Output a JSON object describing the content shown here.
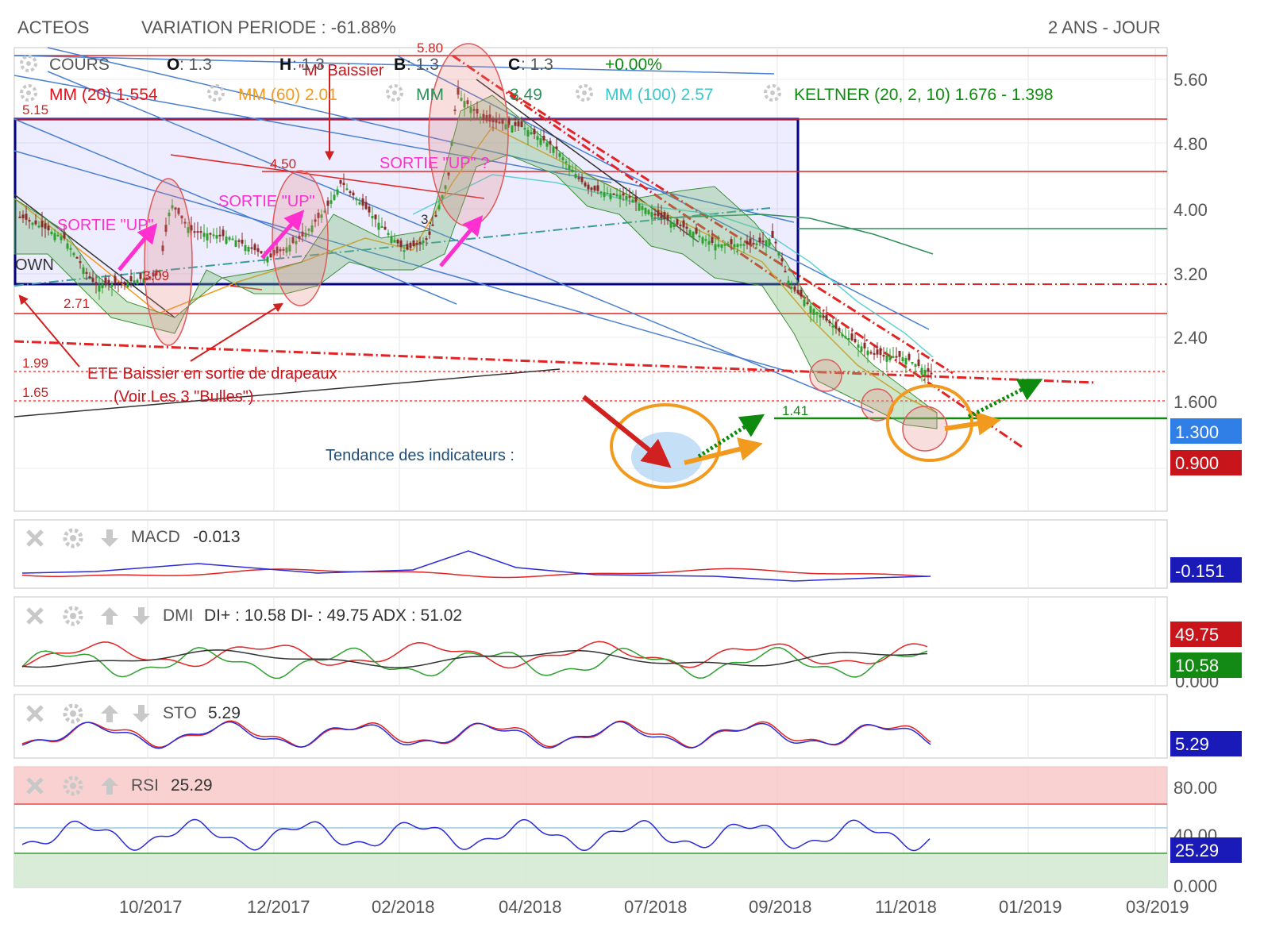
{
  "header": {
    "ticker": "ACTEOS",
    "variation": "VARIATION PERIODE : -61.88%",
    "range": "2 ANS - JOUR"
  },
  "legend": {
    "cours": "COURS",
    "o_label": "O",
    "o_value": ": 1.3",
    "h_label": "H",
    "h_value": ": 1.3",
    "b_label": "B",
    "b_value": ": 1.3",
    "c_label": "C",
    "c_value": ": 1.3",
    "change": "+0.00%",
    "mm20": "MM (20)  1.554",
    "mm60": "MM (60)  2.01",
    "mm100_prefix": "MM",
    "mm100_suffix": "3.49",
    "mm100b": "MM (100)  2.57",
    "keltner": "KELTNER (20, 2, 10)  1.676 - 1.398"
  },
  "colors": {
    "mm20": "#e8101a",
    "mm60": "#f29a1e",
    "mm100b": "#3cc7c9",
    "keltner": "#0e8a0e",
    "pink_annot": "#ff2fd0",
    "red_annot": "#d0201f",
    "box": "#000080",
    "price_tag": "#2f7fe6",
    "low_tag": "#c8141b",
    "macd_tag": "#1a1ab8",
    "dmi_minus_tag": "#c8141b",
    "dmi_plus_tag": "#138a13",
    "sto_tag": "#1a1ab8",
    "rsi_tag": "#1a1ab8"
  },
  "icons": [
    "gear-icon",
    "close-icon",
    "arrow-up-icon",
    "arrow-down-icon"
  ],
  "price_panel": {
    "y_ticks": [
      "5.60",
      "4.80",
      "4.00",
      "3.20",
      "2.40",
      "1.600"
    ],
    "price_tag": "1.300",
    "low_tag": "0.900",
    "level_labels": [
      "5.15",
      "4.50",
      "3.09",
      "2.71",
      "1.99",
      "1.65",
      "1.41"
    ],
    "top_partial": "5.80",
    "mid_partial": "3.",
    "annotations": {
      "m_baissier": "\"M\" Baissier",
      "sortie1": "SORTIE \"UP\"",
      "sortie2": "SORTIE \"UP\"",
      "sortie3": "SORTIE \"UP\" ?",
      "ete1": "ETE Baissier en sortie de drapeaux",
      "ete2": "(Voir Les 3 \"Bulles\")",
      "down": "OWN",
      "tendance": "Tendance des indicateurs :"
    }
  },
  "macd_panel": {
    "label": "MACD",
    "value": "-0.013",
    "tag": "-0.151"
  },
  "dmi_panel": {
    "label": "DMI",
    "value": "DI+ : 10.58 DI- : 49.75 ADX : 51.02",
    "tag_minus": "49.75",
    "tag_plus": "10.58",
    "tag_zero": "0.000"
  },
  "sto_panel": {
    "label": "STO",
    "value": "5.29",
    "tag": "5.29"
  },
  "rsi_panel": {
    "label": "RSI",
    "value": "25.29",
    "ticks": [
      "80.00",
      "40.00",
      "0.000"
    ],
    "tag": "25.29"
  },
  "x_axis": {
    "labels": [
      "10/2017",
      "12/2017",
      "02/2018",
      "04/2018",
      "07/2018",
      "09/2018",
      "11/2018",
      "01/2019",
      "03/2019"
    ]
  },
  "chart_data": {
    "type": "line",
    "title": "ACTEOS",
    "subtitle": "VARIATION PERIODE : -61.88%",
    "xlabel": "",
    "ylabel": "",
    "ylim": [
      0.8,
      5.85
    ],
    "x": [
      "2017-08",
      "2017-09",
      "2017-10",
      "2017-11",
      "2017-12",
      "2018-01",
      "2018-02",
      "2018-03",
      "2018-04",
      "2018-05",
      "2018-06",
      "2018-07",
      "2018-08",
      "2018-09",
      "2018-10",
      "2018-11"
    ],
    "series": [
      {
        "name": "COURS",
        "values": [
          3.5,
          2.7,
          3.1,
          3.4,
          3.0,
          3.6,
          3.1,
          5.1,
          4.6,
          4.0,
          3.8,
          3.4,
          3.1,
          2.4,
          1.6,
          1.3
        ]
      },
      {
        "name": "MM (20)",
        "values": [
          3.4,
          2.8,
          3.0,
          3.3,
          3.1,
          3.5,
          3.3,
          4.5,
          4.5,
          4.1,
          3.8,
          3.5,
          3.2,
          2.6,
          1.8,
          1.554
        ]
      },
      {
        "name": "MM (60)",
        "values": [
          3.3,
          3.0,
          3.0,
          3.2,
          3.2,
          3.4,
          3.3,
          3.9,
          4.2,
          4.1,
          3.9,
          3.6,
          3.4,
          2.9,
          2.3,
          2.01
        ]
      },
      {
        "name": "MM (100)",
        "values": [
          3.2,
          3.1,
          3.0,
          3.1,
          3.2,
          3.3,
          3.3,
          3.6,
          3.9,
          4.0,
          3.9,
          3.7,
          3.5,
          3.2,
          2.8,
          2.57
        ]
      }
    ],
    "levels": [
      5.8,
      5.15,
      4.5,
      3.09,
      2.71,
      1.99,
      1.65,
      1.41
    ],
    "indicators": {
      "MACD": -0.013,
      "DI+": 10.58,
      "DI-": 49.75,
      "ADX": 51.02,
      "STO": 5.29,
      "RSI": 25.29
    },
    "grid": true,
    "legend": "top-left"
  }
}
